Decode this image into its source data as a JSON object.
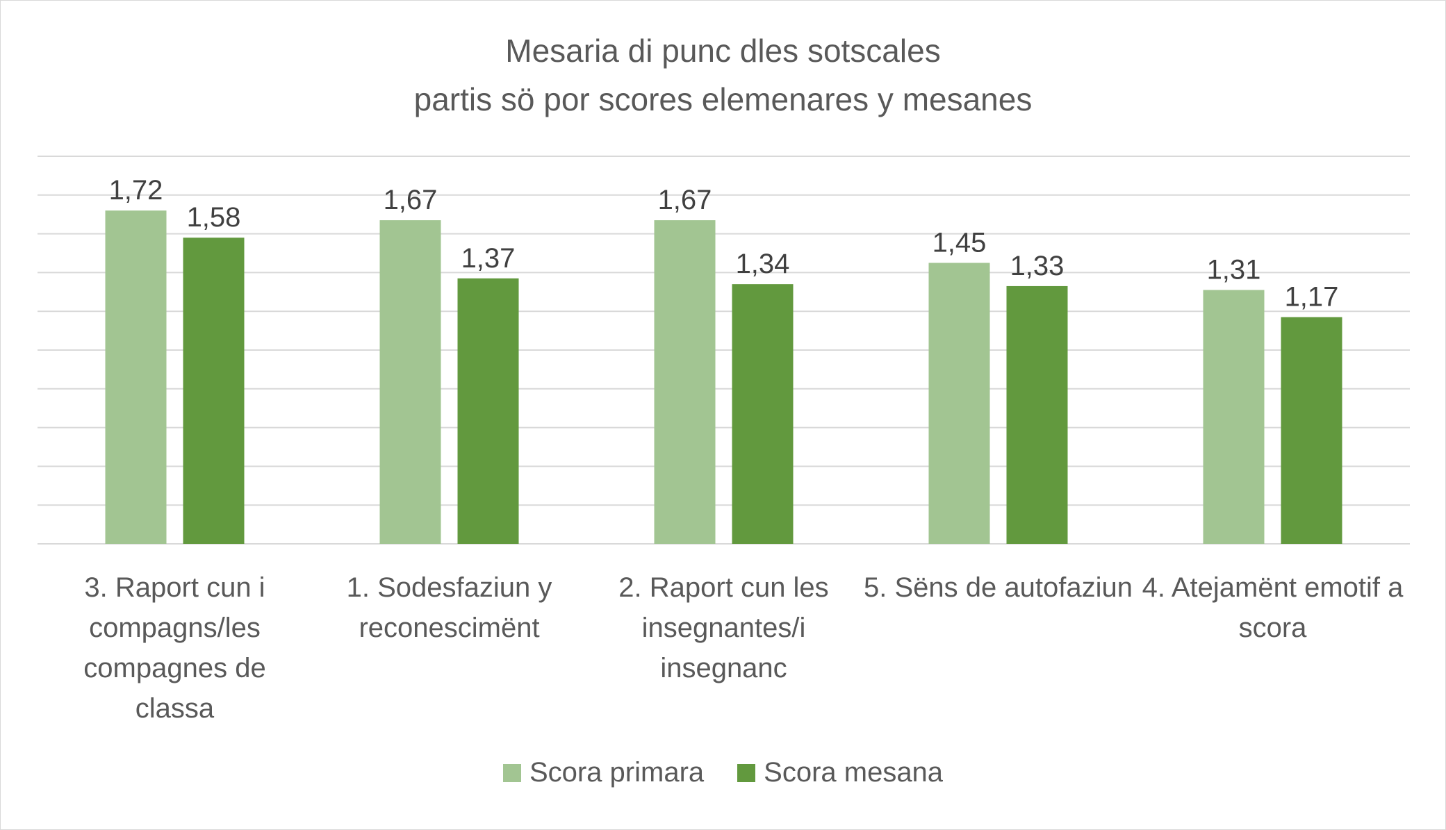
{
  "chart_data": {
    "type": "bar",
    "title": [
      "Mesaria di punc dles sotscales",
      "partis sö por scores elemenares y mesanes"
    ],
    "categories": [
      "3. Raport cun i compagns/les compagnes de classa",
      "1. Sodesfaziun y reconescimënt",
      "2. Raport cun les insegnantes/i insegnanc",
      "5. Sëns de autofaziun",
      "4. Atejamënt emotif a scora"
    ],
    "series": [
      {
        "name": "Scora primara",
        "values": [
          1.72,
          1.67,
          1.67,
          1.45,
          1.31
        ],
        "labels": [
          "1,72",
          "1,67",
          "1,67",
          "1,45",
          "1,31"
        ],
        "color": "#a2c592"
      },
      {
        "name": "Scora mesana",
        "values": [
          1.58,
          1.37,
          1.34,
          1.33,
          1.17
        ],
        "labels": [
          "1,58",
          "1,37",
          "1,34",
          "1,33",
          "1,17"
        ],
        "color": "#62993e"
      }
    ],
    "ylim": [
      0,
      2
    ],
    "grid": true,
    "y_tick_labels_shown": false,
    "legend_position": "bottom"
  }
}
